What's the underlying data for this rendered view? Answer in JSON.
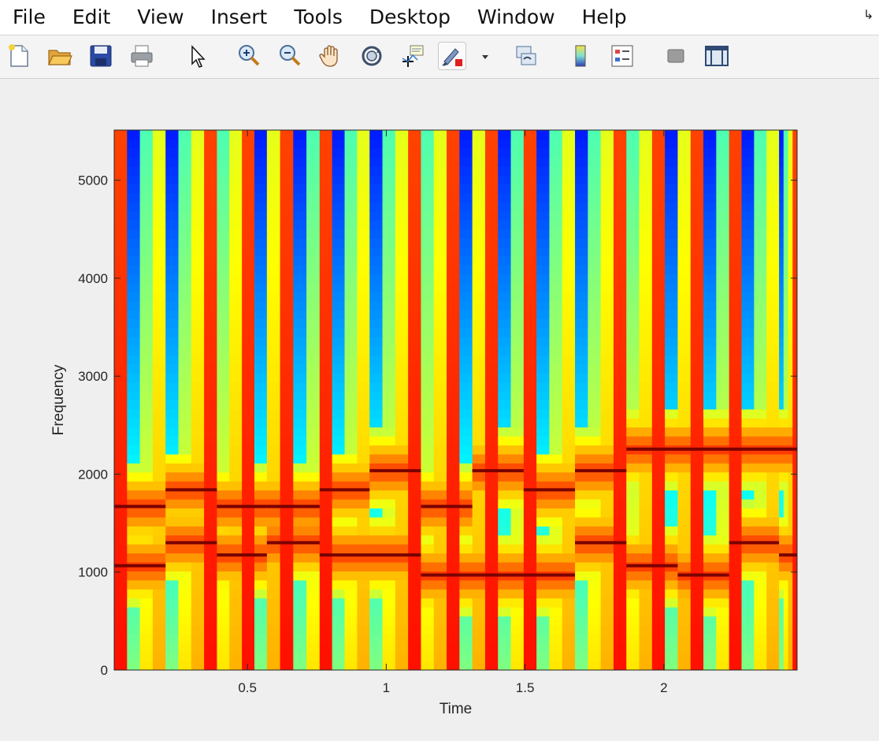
{
  "menubar": {
    "items": [
      "File",
      "Edit",
      "View",
      "Insert",
      "Tools",
      "Desktop",
      "Window",
      "Help"
    ]
  },
  "toolbar": {
    "buttons": [
      "new-figure-icon",
      "open-file-icon",
      "save-icon",
      "print-icon",
      "edit-plot-arrow-icon",
      "zoom-in-icon",
      "zoom-out-icon",
      "pan-hand-icon",
      "rotate-3d-icon",
      "data-cursor-icon",
      "brush-icon",
      "link-plot-icon",
      "colorbar-icon",
      "legend-icon",
      "hide-plot-tools-icon",
      "show-plot-tools-icon"
    ]
  },
  "chart_data": {
    "type": "heatmap",
    "title": "",
    "xlabel": "Time",
    "ylabel": "Frequency",
    "xlim": [
      0.02,
      2.48
    ],
    "ylim": [
      0,
      5512
    ],
    "xticks": [
      "0.5",
      "1",
      "1.5",
      "2"
    ],
    "xtick_values": [
      0.5,
      1,
      1.5,
      2
    ],
    "yticks": [
      "0",
      "1000",
      "2000",
      "3000",
      "4000",
      "5000"
    ],
    "ytick_values": [
      0,
      1000,
      2000,
      3000,
      4000,
      5000
    ],
    "colormap": "jet",
    "segments": [
      {
        "t_start": 0.02,
        "t_end": 0.205,
        "freqs": [
          1065,
          1670
        ]
      },
      {
        "t_start": 0.205,
        "t_end": 0.39,
        "freqs": [
          1300,
          1840
        ]
      },
      {
        "t_start": 0.39,
        "t_end": 0.57,
        "freqs": [
          1175,
          1670
        ]
      },
      {
        "t_start": 0.57,
        "t_end": 0.76,
        "freqs": [
          1300,
          1670
        ]
      },
      {
        "t_start": 0.76,
        "t_end": 0.94,
        "freqs": [
          1175,
          1840
        ]
      },
      {
        "t_start": 0.94,
        "t_end": 1.125,
        "freqs": [
          1175,
          2035
        ]
      },
      {
        "t_start": 1.125,
        "t_end": 1.31,
        "freqs": [
          970,
          1670
        ]
      },
      {
        "t_start": 1.31,
        "t_end": 1.495,
        "freqs": [
          970,
          2035
        ]
      },
      {
        "t_start": 1.495,
        "t_end": 1.68,
        "freqs": [
          970,
          1840
        ]
      },
      {
        "t_start": 1.68,
        "t_end": 1.865,
        "freqs": [
          1300,
          2035
        ]
      },
      {
        "t_start": 1.865,
        "t_end": 2.05,
        "freqs": [
          1065,
          2255
        ]
      },
      {
        "t_start": 2.05,
        "t_end": 2.235,
        "freqs": [
          970,
          2255
        ]
      },
      {
        "t_start": 2.235,
        "t_end": 2.415,
        "freqs": [
          1300,
          2255
        ]
      },
      {
        "t_start": 2.415,
        "t_end": 2.48,
        "freqs": [
          1175,
          2255
        ]
      }
    ],
    "grid": false,
    "legend": "none"
  },
  "colors": {
    "figure_bg": "#efefef",
    "axes_border": "#262626"
  }
}
